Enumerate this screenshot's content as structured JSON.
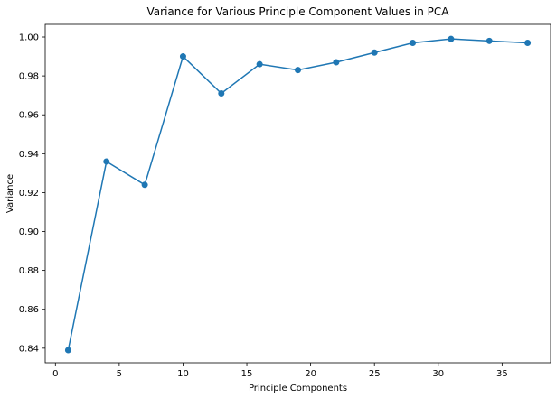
{
  "chart_data": {
    "type": "line",
    "title": "Variance for Various Principle Component Values in PCA",
    "xlabel": "Principle Components",
    "ylabel": "Variance",
    "xlim": [
      -0.8,
      38.8
    ],
    "ylim": [
      0.8325,
      1.0065
    ],
    "xticks": [
      0,
      5,
      10,
      15,
      20,
      25,
      30,
      35
    ],
    "yticks": [
      0.84,
      0.86,
      0.88,
      0.9,
      0.92,
      0.94,
      0.96,
      0.98,
      1.0
    ],
    "ytick_labels": [
      "0.84",
      "0.86",
      "0.88",
      "0.90",
      "0.92",
      "0.94",
      "0.96",
      "0.98",
      "1.00"
    ],
    "grid": false,
    "color": "#1f77b4",
    "series": [
      {
        "x": [
          1,
          4,
          7,
          10,
          13,
          16,
          19,
          22,
          25,
          28,
          31,
          34,
          37
        ],
        "values": [
          0.839,
          0.936,
          0.924,
          0.99,
          0.971,
          0.986,
          0.983,
          0.987,
          0.992,
          0.997,
          0.999,
          0.998,
          0.997
        ]
      }
    ]
  }
}
